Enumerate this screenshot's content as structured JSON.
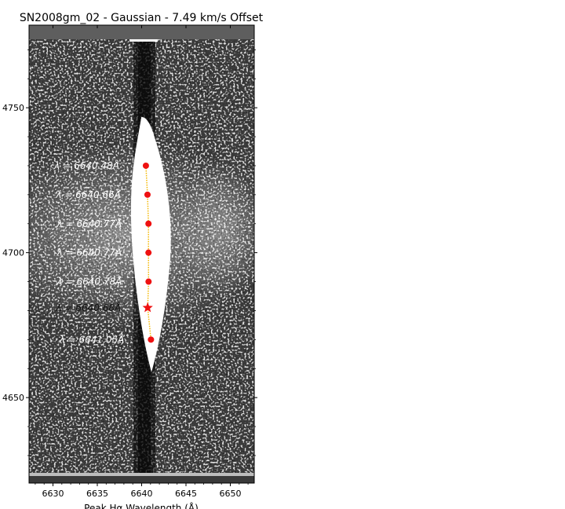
{
  "chart_data": {
    "type": "scatter",
    "title": "SN2008gm_02 - Gaussian - 7.49 km/s Offset",
    "xlabel": "Peak Hα Wavelength (Å)",
    "ylabel": "",
    "xlim": [
      6627.3,
      6652.7
    ],
    "ylim": [
      4620.5,
      4778.5
    ],
    "xticks": [
      6630,
      6635,
      6640,
      6645,
      6650
    ],
    "yticks": [
      4650,
      4700,
      4750
    ],
    "xtick_labels": [
      "6630",
      "6635",
      "6640",
      "6645",
      "6650"
    ],
    "ytick_labels": [
      "4650",
      "4700",
      "4750"
    ],
    "grid": false,
    "background": "grayscale spectrum image",
    "points": [
      {
        "x": 6640.48,
        "y": 4730,
        "label": "λ = 6640.48Å",
        "marker": "circle"
      },
      {
        "x": 6640.66,
        "y": 4720,
        "label": "λ = 6640.66Å",
        "marker": "circle"
      },
      {
        "x": 6640.77,
        "y": 4710,
        "label": "λ = 6640.77Å",
        "marker": "circle"
      },
      {
        "x": 6640.77,
        "y": 4700,
        "label": "λ = 6640.77Å",
        "marker": "circle"
      },
      {
        "x": 6640.78,
        "y": 4690,
        "label": "λ = 6640.78Å",
        "marker": "circle"
      },
      {
        "x": 6640.68,
        "y": 4681,
        "label": "λ = 6640.68Å",
        "marker": "star"
      },
      {
        "x": 6641.05,
        "y": 4670,
        "label": "λ = 6641.05Å",
        "marker": "circle"
      }
    ],
    "colors": {
      "points": "#ee1111",
      "trace": "#f5b800",
      "labels": "#ffffff",
      "star_label": "#111111"
    }
  }
}
